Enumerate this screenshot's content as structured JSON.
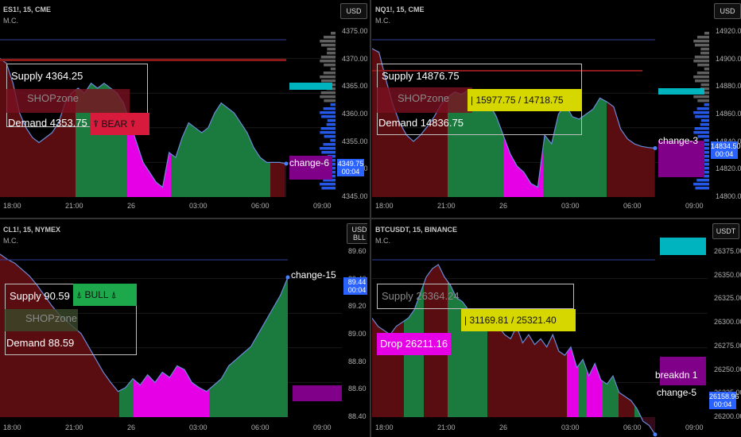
{
  "colors": {
    "green": "#1b7a3e",
    "magenta": "#e600e6",
    "darkred": "#5a0d10",
    "cyan": "#00b4bf",
    "purple": "#80008a",
    "blue": "#2962ff",
    "yellow": "#d7d700"
  },
  "chart_data": [
    {
      "type": "area",
      "symbol": "ES1!, 15, CME",
      "study": "M.C.",
      "currency": "USD",
      "y_ticks": [
        "4375.00",
        "4370.00",
        "4365.00",
        "4360.00",
        "4355.00",
        "4350.00",
        "4345.00"
      ],
      "x_ticks": [
        "18:00",
        "21:00",
        "26",
        "03:00",
        "06:00",
        "09:00"
      ],
      "last_price": "4349.75",
      "countdown": "00:04",
      "supply_label": "Supply  4364.25",
      "demand_label": "Demand  4353.75",
      "zone_label": "SHOPzone",
      "tag_label": "⍒ BEAR ⍒",
      "change_label": "change-6",
      "ylim": [
        4343,
        4378
      ],
      "series": [
        4371,
        4370,
        4366,
        4360,
        4357,
        4355,
        4354,
        4355,
        4356,
        4358,
        4362,
        4364,
        4365,
        4364,
        4366,
        4365,
        4366,
        4365,
        4364,
        4362,
        4358,
        4354,
        4350,
        4348,
        4346,
        4345,
        4352,
        4351,
        4355,
        4358,
        4357,
        4356,
        4357,
        4360,
        4362,
        4361,
        4360,
        4358,
        4356,
        4353,
        4351,
        4350,
        4350,
        4350,
        4349.75
      ]
    },
    {
      "type": "area",
      "symbol": "NQ1!, 15, CME",
      "study": "M.C.",
      "currency": "USD",
      "y_ticks": [
        "14920.00",
        "14900.00",
        "14880.00",
        "14860.00",
        "14840.00",
        "14820.00",
        "14800.00"
      ],
      "x_ticks": [
        "18:00",
        "21:00",
        "26",
        "03:00",
        "06:00",
        "09:00"
      ],
      "last_price": "14834.50",
      "countdown": "00:04",
      "supply_label": "Supply  14876.75",
      "demand_label": "Demand  14836.75",
      "zone_label": "SHOPzone",
      "tag_label": "|  15977.75 / 14718.75",
      "change_label": "change-3",
      "ylim": [
        14795,
        14935
      ],
      "series": [
        14915,
        14912,
        14890,
        14870,
        14855,
        14845,
        14840,
        14845,
        14852,
        14860,
        14870,
        14876,
        14880,
        14878,
        14882,
        14880,
        14878,
        14870,
        14860,
        14845,
        14830,
        14820,
        14815,
        14806,
        14803,
        14845,
        14838,
        14862,
        14870,
        14860,
        14858,
        14862,
        14866,
        14875,
        14872,
        14868,
        14850,
        14842,
        14838,
        14836,
        14835,
        14834.5
      ]
    },
    {
      "type": "area",
      "symbol": "CL1!, 15, NYMEX",
      "study": "M.C.",
      "currency": "USD",
      "unit": "BLL",
      "y_ticks": [
        "89.60",
        "89.40",
        "89.20",
        "89.00",
        "88.80",
        "88.60",
        "88.40"
      ],
      "x_ticks": [
        "18:00",
        "21:00",
        "26",
        "03:00",
        "06:00",
        "09:00"
      ],
      "last_price": "89.44",
      "countdown": "00:04",
      "supply_label": "Supply  90.59",
      "demand_label": "Demand  88.59",
      "zone_label": "SHOPzone",
      "tag_label": "⍋ BULL ⍋",
      "change_label": "change-15",
      "ylim": [
        88.35,
        89.7
      ],
      "series": [
        89.62,
        89.58,
        89.55,
        89.5,
        89.45,
        89.38,
        89.3,
        89.22,
        89.15,
        89.1,
        89.05,
        89.0,
        88.9,
        88.8,
        88.7,
        88.62,
        88.55,
        88.58,
        88.65,
        88.6,
        88.68,
        88.62,
        88.7,
        88.66,
        88.75,
        88.72,
        88.62,
        88.58,
        88.55,
        88.6,
        88.65,
        88.75,
        88.8,
        88.85,
        88.9,
        89.0,
        89.1,
        89.2,
        89.3,
        89.44
      ]
    },
    {
      "type": "area",
      "symbol": "BTCUSDT, 15, BINANCE",
      "study": "M.C.",
      "currency": "USDT",
      "y_ticks": [
        "26375.00",
        "26350.00",
        "26325.00",
        "26300.00",
        "26275.00",
        "26250.00",
        "26225.00",
        "26200.00"
      ],
      "x_ticks": [
        "18:00",
        "21:00",
        "26",
        "03:00",
        "06:00",
        "09:00"
      ],
      "last_price": "26158.96",
      "countdown": "00:04",
      "supply_label": "Supply  26364.24",
      "drop_label": "Drop  26211.16",
      "tag_label": "|  31169.81 / 25321.40",
      "breakdown_label": "breakdn 1",
      "change_label": "change-5",
      "ylim": [
        26180,
        26390
      ],
      "series": [
        26300,
        26290,
        26285,
        26280,
        26290,
        26295,
        26300,
        26310,
        26330,
        26350,
        26360,
        26365,
        26350,
        26340,
        26325,
        26320,
        26310,
        26300,
        26290,
        26295,
        26285,
        26290,
        26280,
        26275,
        26290,
        26270,
        26280,
        26268,
        26275,
        26265,
        26280,
        26260,
        26255,
        26265,
        26240,
        26250,
        26230,
        26245,
        26225,
        26220,
        26230,
        26210,
        26205,
        26200,
        26190,
        26175,
        26170,
        26158.96
      ]
    }
  ]
}
